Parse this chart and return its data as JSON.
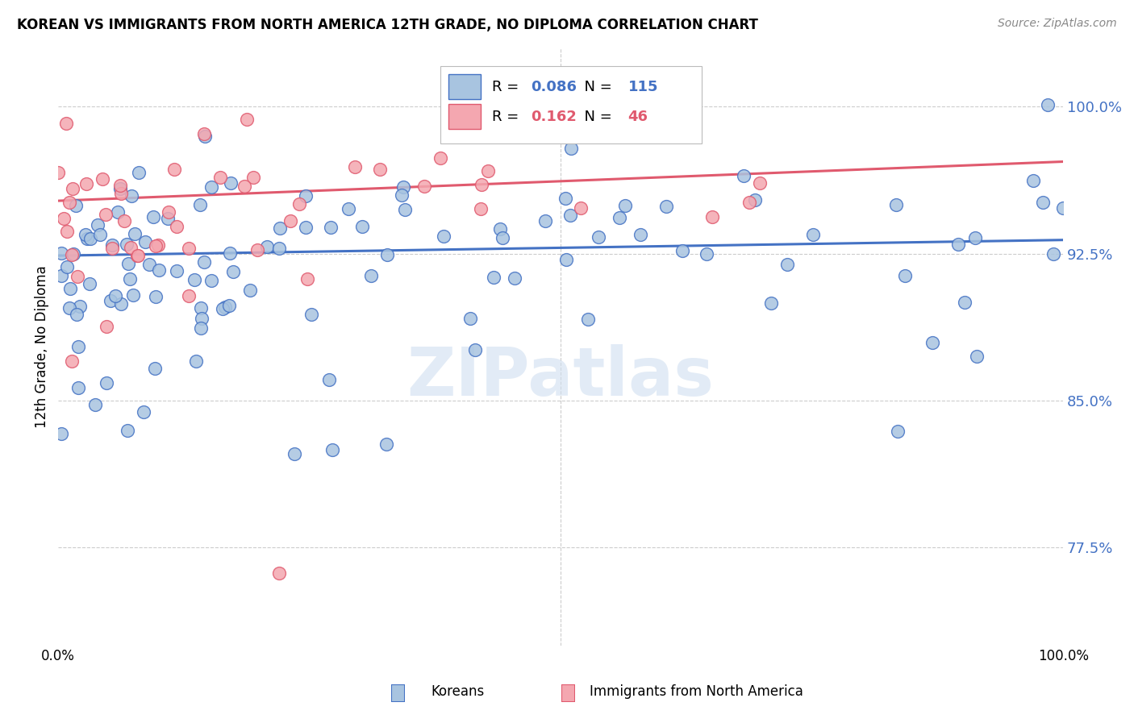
{
  "title": "KOREAN VS IMMIGRANTS FROM NORTH AMERICA 12TH GRADE, NO DIPLOMA CORRELATION CHART",
  "source": "Source: ZipAtlas.com",
  "ylabel": "12th Grade, No Diploma",
  "ytick_labels": [
    "77.5%",
    "85.0%",
    "92.5%",
    "100.0%"
  ],
  "ytick_values": [
    0.775,
    0.85,
    0.925,
    1.0
  ],
  "xlim": [
    0.0,
    1.0
  ],
  "ylim": [
    0.725,
    1.03
  ],
  "legend_blue_R": "0.086",
  "legend_blue_N": "115",
  "legend_pink_R": "0.162",
  "legend_pink_N": "46",
  "blue_fill": "#a8c4e0",
  "blue_edge": "#4472c4",
  "pink_fill": "#f4a7b0",
  "pink_edge": "#e05a6e",
  "watermark": "ZIPatlas",
  "background_color": "#ffffff",
  "grid_color": "#cccccc",
  "blue_line_start_y": 0.924,
  "blue_line_end_y": 0.932,
  "pink_line_start_y": 0.952,
  "pink_line_end_y": 0.972
}
